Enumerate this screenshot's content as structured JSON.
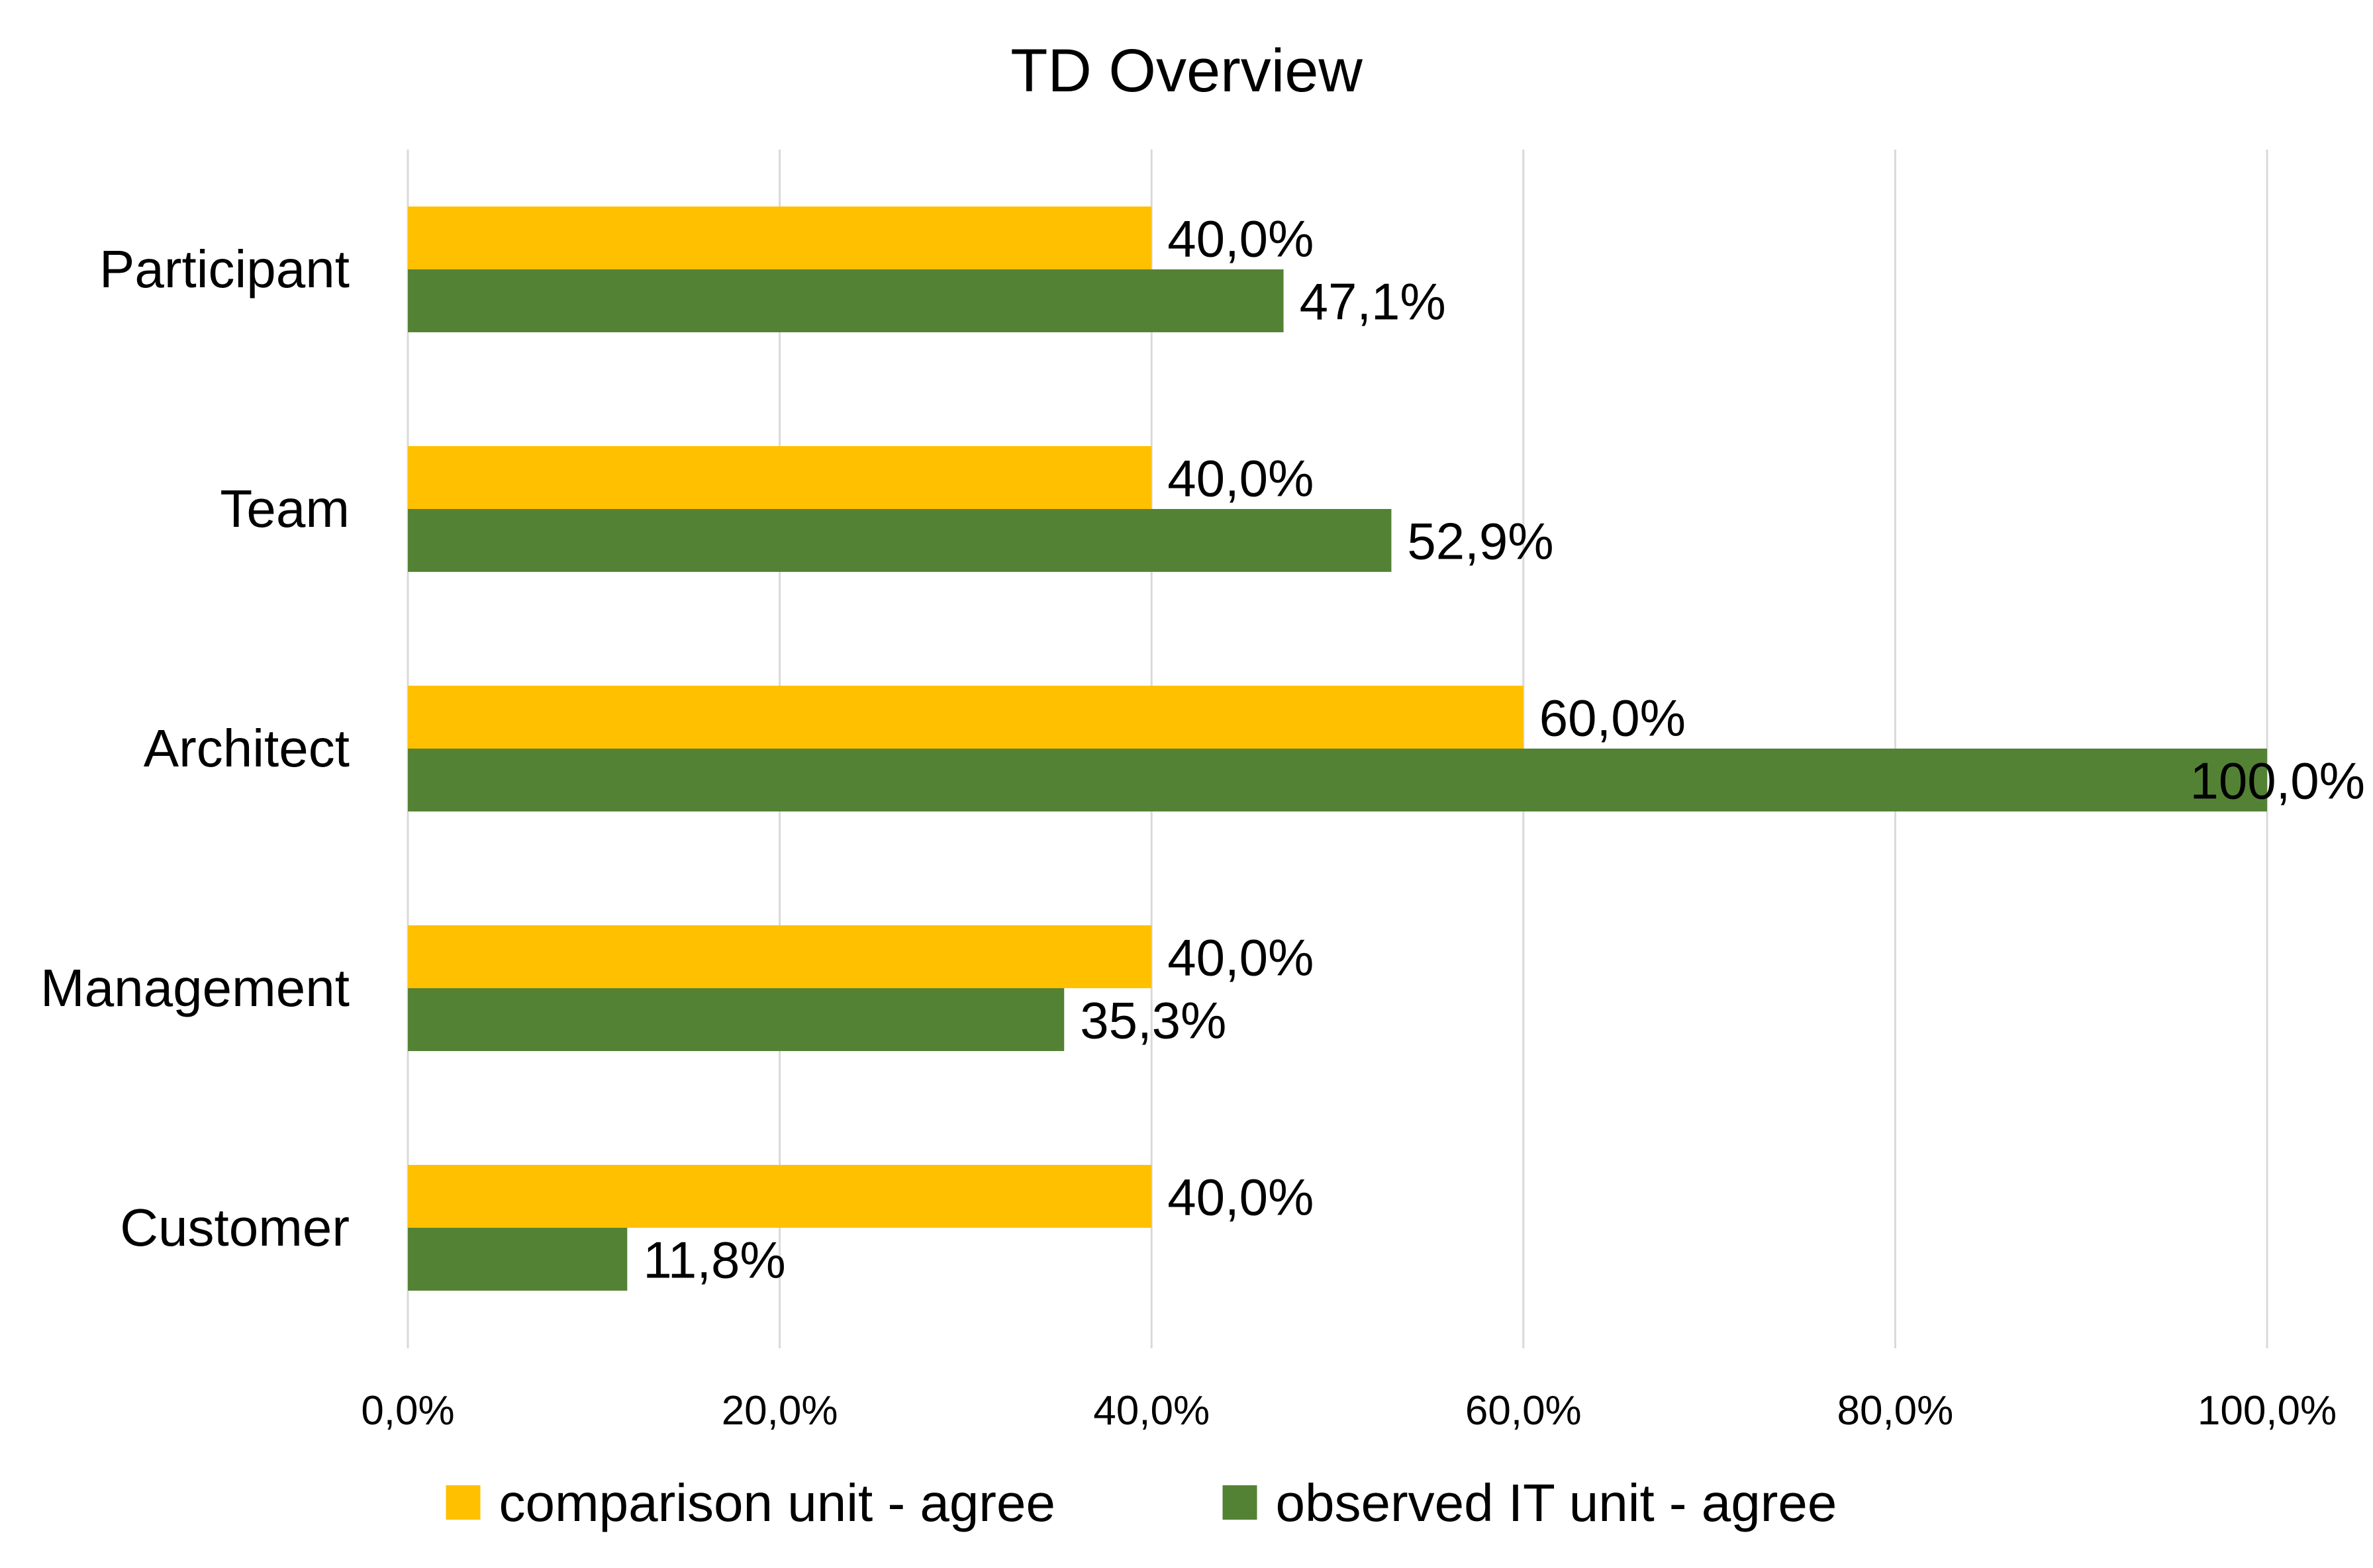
{
  "chart_data": {
    "type": "bar",
    "orientation": "horizontal",
    "title": "TD Overview",
    "xlabel": "",
    "ylabel": "",
    "xlim": [
      0,
      100
    ],
    "grid": true,
    "legend_position": "bottom",
    "categories": [
      "Participant",
      "Team",
      "Architect",
      "Management",
      "Customer"
    ],
    "x_ticks": [
      "0,0%",
      "20,0%",
      "40,0%",
      "60,0%",
      "80,0%",
      "100,0%"
    ],
    "x_tick_values": [
      0,
      20,
      40,
      60,
      80,
      100
    ],
    "series": [
      {
        "name": "comparison unit - agree",
        "color": "#FFC000",
        "values": [
          40.0,
          40.0,
          60.0,
          40.0,
          40.0
        ],
        "labels": [
          "40,0%",
          "40,0%",
          "60,0%",
          "40,0%",
          "40,0%"
        ]
      },
      {
        "name": "observed IT unit - agree",
        "color": "#548235",
        "values": [
          47.1,
          52.9,
          100.0,
          35.3,
          11.8
        ],
        "labels": [
          "47,1%",
          "52,9%",
          "100,0%",
          "35,3%",
          "11,8%"
        ]
      }
    ]
  }
}
